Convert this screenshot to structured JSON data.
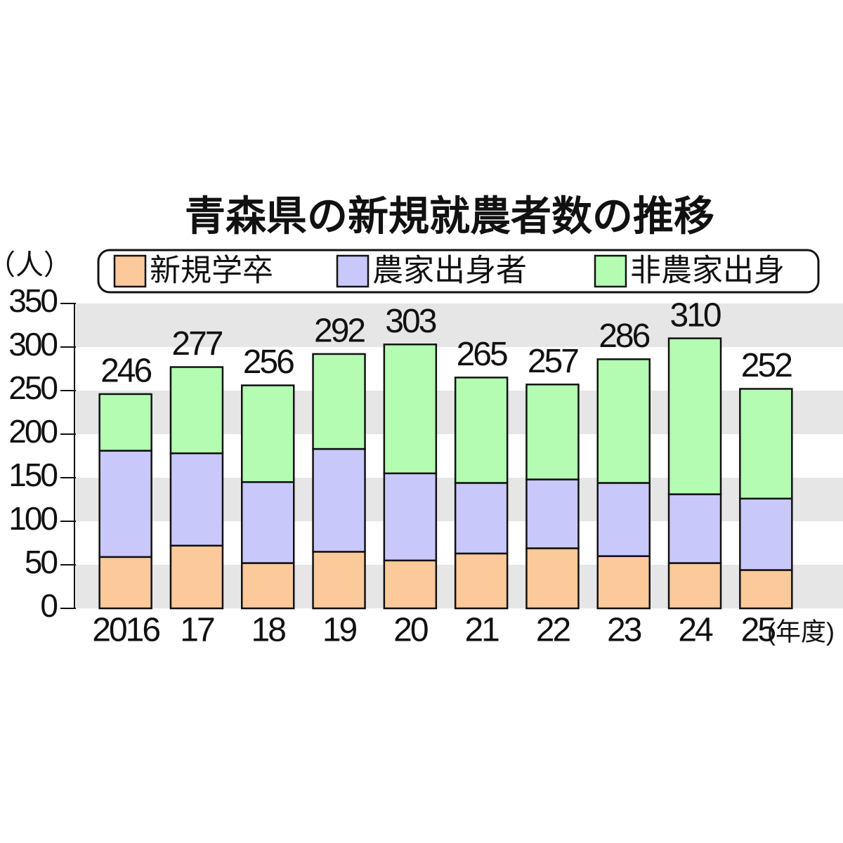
{
  "chart_data": {
    "type": "stacked-bar",
    "title": "青森県の新規就農者数の推移",
    "y_label": "（人）",
    "x_label": "(年度)",
    "categories": [
      "2016",
      "17",
      "18",
      "19",
      "20",
      "21",
      "22",
      "23",
      "24",
      "25"
    ],
    "series": [
      {
        "name": "新規学卒",
        "color": "#fbc99a",
        "values": [
          59,
          72,
          52,
          65,
          55,
          63,
          69,
          60,
          52,
          44
        ]
      },
      {
        "name": "農家出身者",
        "color": "#c9c8fb",
        "values": [
          122,
          106,
          93,
          118,
          100,
          81,
          79,
          84,
          79,
          82
        ]
      },
      {
        "name": "非農家出身",
        "color": "#b3fcb2",
        "values": [
          65,
          99,
          111,
          109,
          148,
          121,
          109,
          142,
          179,
          126
        ]
      }
    ],
    "totals": [
      246,
      277,
      256,
      292,
      303,
      265,
      257,
      286,
      310,
      252
    ],
    "ylim": [
      0,
      350
    ],
    "yticks": [
      0,
      50,
      100,
      150,
      200,
      250,
      300,
      350
    ],
    "grid": "bands",
    "band_color": "#e6e6e6"
  }
}
